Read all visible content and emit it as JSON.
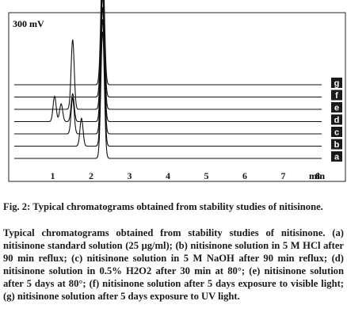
{
  "chart_data": {
    "type": "line",
    "title": "",
    "y_scale_label": "300 mV",
    "x_unit_label": "min",
    "x_ticks": [
      "1",
      "2",
      "3",
      "4",
      "5",
      "6",
      "7",
      "8"
    ],
    "xlim": [
      0.0,
      8.0
    ],
    "grid": false,
    "series": [
      {
        "name": "a",
        "peaks": [
          {
            "rt": 2.3,
            "height": 1.0
          }
        ]
      },
      {
        "name": "b",
        "peaks": [
          {
            "rt": 1.75,
            "height": 0.22
          },
          {
            "rt": 2.3,
            "height": 1.0
          }
        ]
      },
      {
        "name": "c",
        "peaks": [
          {
            "rt": 1.52,
            "height": 0.28
          },
          {
            "rt": 2.3,
            "height": 1.0
          }
        ]
      },
      {
        "name": "d",
        "peaks": [
          {
            "rt": 1.05,
            "height": 0.2
          },
          {
            "rt": 1.22,
            "height": 0.14
          },
          {
            "rt": 1.52,
            "height": 0.22
          },
          {
            "rt": 2.3,
            "height": 1.0
          }
        ]
      },
      {
        "name": "e",
        "peaks": [
          {
            "rt": 1.52,
            "height": 0.55
          },
          {
            "rt": 2.3,
            "height": 1.0
          }
        ]
      },
      {
        "name": "f",
        "peaks": [
          {
            "rt": 2.3,
            "height": 1.0
          }
        ]
      },
      {
        "name": "g",
        "peaks": [
          {
            "rt": 2.3,
            "height": 1.0
          }
        ]
      }
    ]
  },
  "caption": {
    "heading": "Fig. 2: Typical chromatograms obtained from stability studies of nitisinone.",
    "body": "Typical chromatograms obtained from stability studies of nitisinone. (a) nitisinone standard solution (25 μg/ml); (b) nitisinone solution in 5 M HCl after 90 min reflux; (c) nitisinone solution in 5 M NaOH after 90 min reflux; (d) nitisinone solution in 0.5% H2O2 after 30 min at 80°; (e) nitisinone solution after 5 days at 80°; (f) nitisinone solution after 5 days exposure to visible light; (g) nitisinone solution after 5 days exposure to UV light."
  },
  "colors": {
    "trace": "#111111",
    "frame": "#222222",
    "label_box": "#1a1a1a",
    "label_text": "#ffffff"
  }
}
